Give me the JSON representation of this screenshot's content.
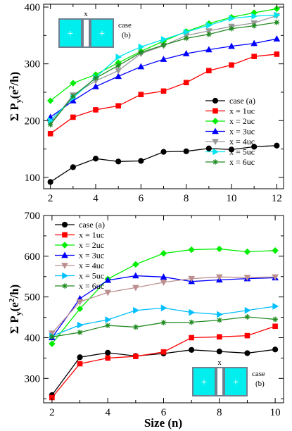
{
  "chart_data": [
    {
      "type": "line",
      "panel": "top",
      "ylabel": "Σ P_y(e^2/h)",
      "xlabel": "",
      "xlim": [
        1.7,
        12.3
      ],
      "ylim": [
        80,
        405
      ],
      "xticks": [
        2,
        4,
        6,
        8,
        10,
        12
      ],
      "yticks": [
        100,
        200,
        300,
        400
      ],
      "x": [
        2,
        3,
        4,
        5,
        6,
        7,
        8,
        9,
        10,
        11,
        12
      ],
      "legend_position": "bottom-right",
      "inset": {
        "label_x": "x",
        "label_case": "case",
        "label_sub": "(b)",
        "position": "top-left"
      },
      "series": [
        {
          "name": "case (a)",
          "color": "#000000",
          "marker": "circle",
          "values": [
            92,
            118,
            133,
            128,
            129,
            145,
            146,
            151,
            149,
            154,
            156
          ]
        },
        {
          "name": "x = 1uc",
          "color": "#ff0000",
          "marker": "square",
          "values": [
            177,
            206,
            219,
            226,
            246,
            252,
            267,
            288,
            298,
            313,
            317
          ]
        },
        {
          "name": "x = 2uc",
          "color": "#00ee00",
          "marker": "diamond",
          "values": [
            235,
            266,
            281,
            302,
            322,
            340,
            357,
            371,
            382,
            390,
            397
          ]
        },
        {
          "name": "x = 3uc",
          "color": "#0000ff",
          "marker": "triangle-up",
          "values": [
            206,
            235,
            260,
            278,
            295,
            308,
            318,
            325,
            331,
            336,
            344
          ]
        },
        {
          "name": "x = 4uc",
          "color": "#999999",
          "marker": "triangle-down",
          "values": [
            195,
            245,
            270,
            288,
            318,
            332,
            350,
            358,
            366,
            372,
            385
          ]
        },
        {
          "name": "x = 5uc",
          "color": "#00e5ee",
          "marker": "triangle-right",
          "values": [
            200,
            240,
            276,
            312,
            330,
            343,
            356,
            368,
            380,
            384,
            386
          ]
        },
        {
          "name": "x = 6uc",
          "color": "#228b22",
          "marker": "star",
          "values": [
            193,
            243,
            275,
            297,
            320,
            333,
            345,
            352,
            362,
            367,
            373
          ]
        }
      ]
    },
    {
      "type": "line",
      "panel": "bottom",
      "ylabel": "Σ P_y(e^2/h)",
      "xlabel": "Size (n)",
      "xlim": [
        1.7,
        10.3
      ],
      "ylim": [
        240,
        700
      ],
      "xticks": [
        2,
        4,
        6,
        8,
        10
      ],
      "yticks": [
        300,
        400,
        500,
        600,
        700
      ],
      "x": [
        2,
        3,
        4,
        5,
        6,
        7,
        8,
        9,
        10
      ],
      "legend_position": "top-left",
      "inset": {
        "label_x": "x",
        "label_case": "case",
        "label_sub": "(b)",
        "position": "bottom-right"
      },
      "series": [
        {
          "name": "case (a)",
          "color": "#000000",
          "marker": "circle",
          "values": [
            259,
            352,
            363,
            355,
            361,
            370,
            366,
            362,
            371
          ]
        },
        {
          "name": "x = 1uc",
          "color": "#ff0000",
          "marker": "square",
          "values": [
            253,
            336,
            350,
            354,
            365,
            400,
            402,
            405,
            428
          ]
        },
        {
          "name": "x = 2uc",
          "color": "#00ee00",
          "marker": "diamond",
          "values": [
            385,
            471,
            544,
            580,
            607,
            616,
            618,
            611,
            614
          ]
        },
        {
          "name": "x = 3uc",
          "color": "#0000ff",
          "marker": "triangle-up",
          "values": [
            400,
            496,
            541,
            552,
            549,
            538,
            542,
            545,
            547
          ]
        },
        {
          "name": "x = 4uc",
          "color": "#bc8f8f",
          "marker": "triangle-down",
          "values": [
            411,
            488,
            511,
            523,
            536,
            545,
            549,
            548,
            549
          ]
        },
        {
          "name": "x = 5uc",
          "color": "#00bfff",
          "marker": "triangle-right",
          "values": [
            404,
            431,
            444,
            467,
            473,
            462,
            457,
            467,
            477
          ]
        },
        {
          "name": "x = 6uc",
          "color": "#228b22",
          "marker": "star",
          "values": [
            402,
            413,
            430,
            426,
            437,
            438,
            443,
            451,
            445
          ]
        }
      ]
    }
  ]
}
